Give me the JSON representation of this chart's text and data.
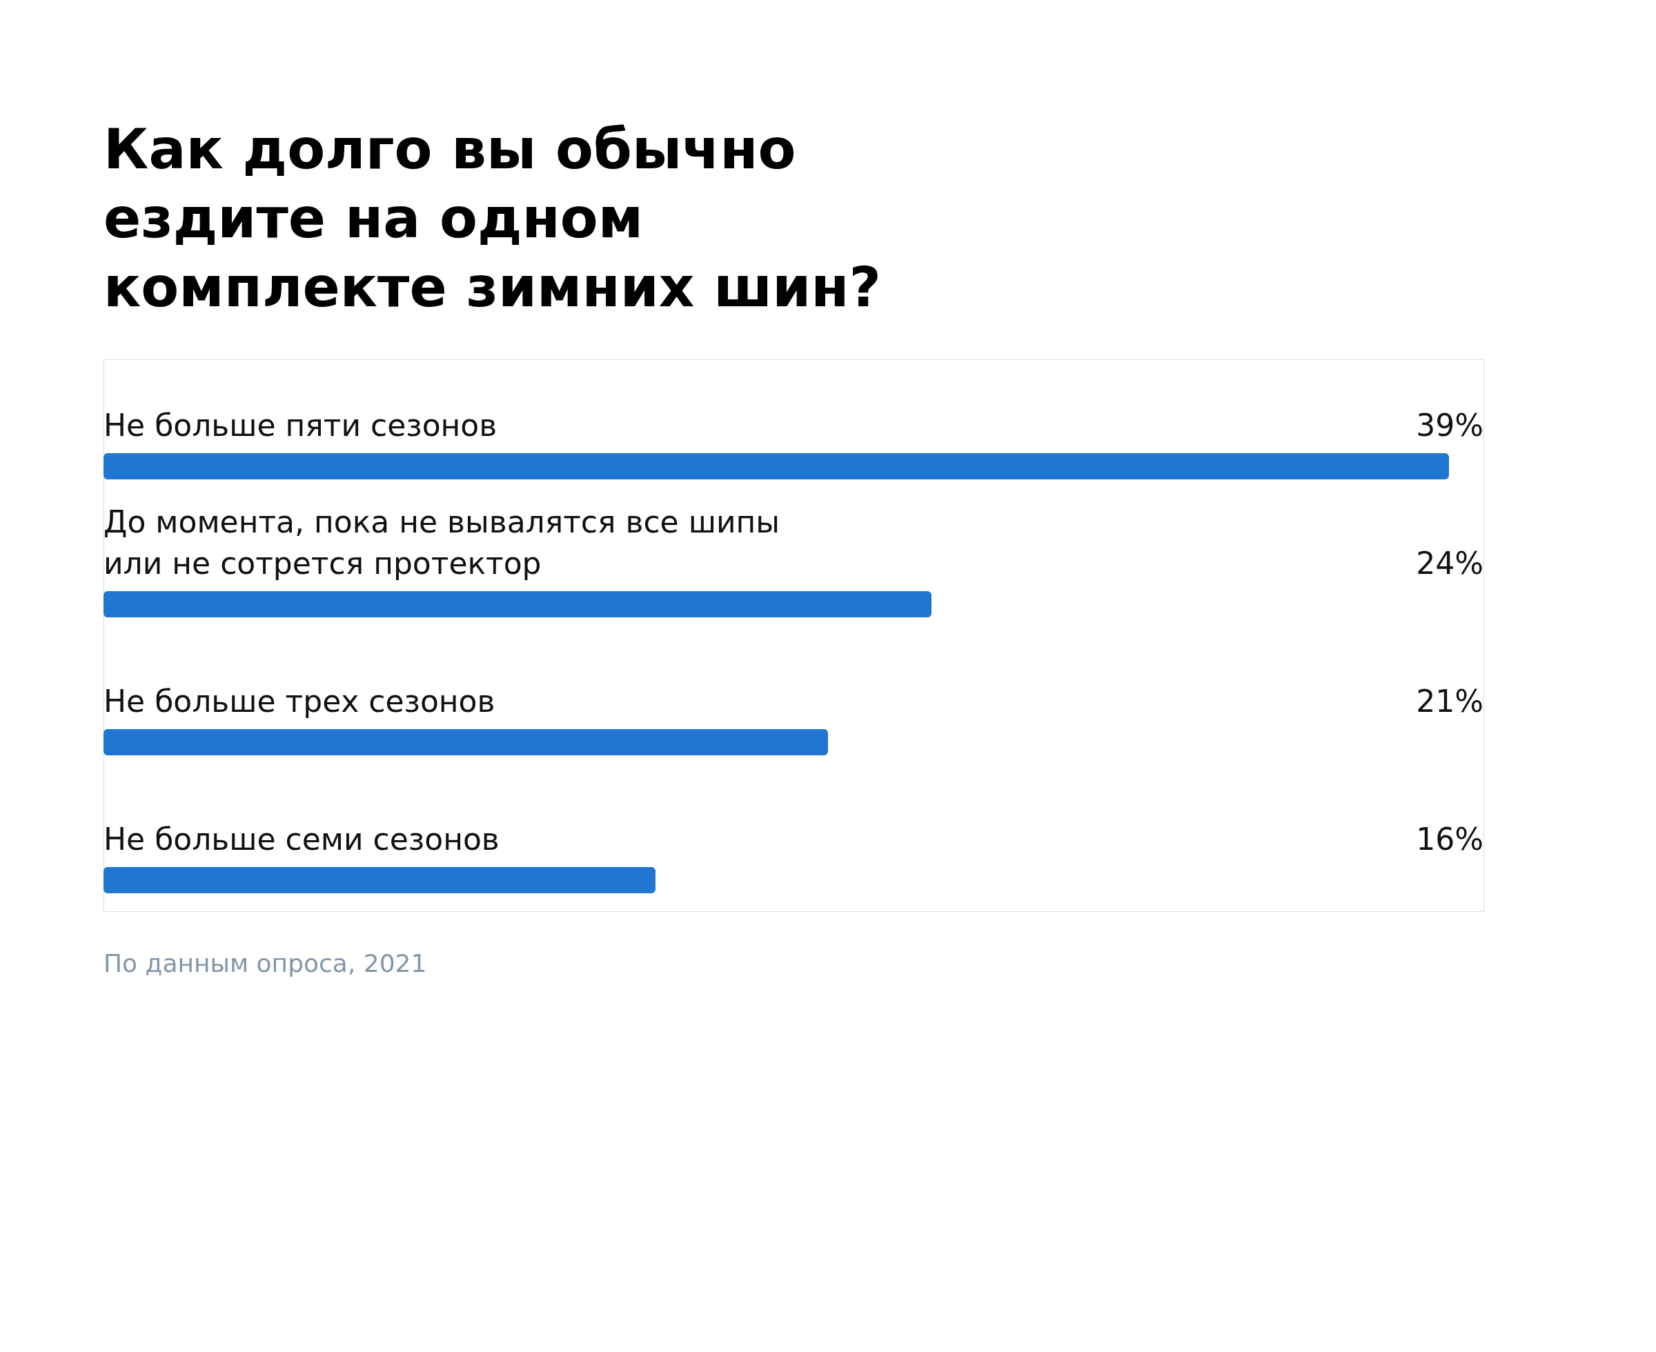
{
  "chart_data": {
    "type": "bar",
    "orientation": "horizontal",
    "title": "Как долго вы обычно\nездите на одном\nкомплекте зимних шин?",
    "categories": [
      "Не больше пяти сезонов",
      "До момента, пока не вывалятся все шипы\nили не сотрется протектор",
      "Не больше трех сезонов",
      "Не больше семи сезонов"
    ],
    "values": [
      39,
      24,
      21,
      16
    ],
    "value_labels": [
      "39%",
      "24%",
      "21%",
      "16%"
    ],
    "color": "#2176d2",
    "annotations": [
      "По данным опроса, 2021"
    ]
  }
}
